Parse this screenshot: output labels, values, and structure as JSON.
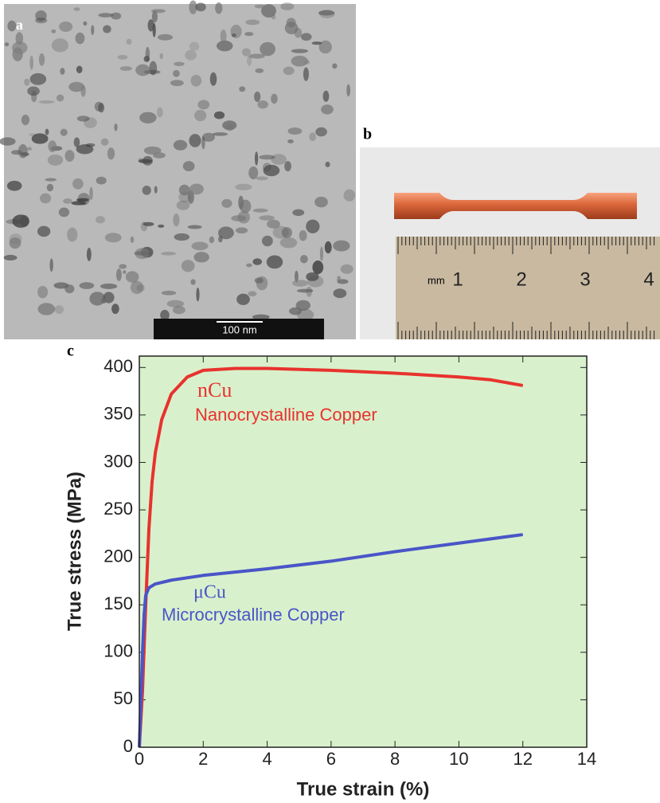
{
  "panels": {
    "a": {
      "label": "a",
      "scale_bar": "100 nm"
    },
    "b": {
      "label": "b",
      "ruler_unit": "mm",
      "ruler_numbers": [
        "1",
        "2",
        "3",
        "4"
      ]
    }
  },
  "chart_data": {
    "type": "line",
    "panel_label": "c",
    "x_label": "True strain (%)",
    "y_label": "True stress (MPa)",
    "xlim": [
      0,
      14
    ],
    "xticks": [
      0,
      2,
      4,
      6,
      8,
      10,
      12,
      14
    ],
    "ylim": [
      0,
      412
    ],
    "yticks": [
      0,
      50,
      100,
      150,
      200,
      250,
      300,
      350,
      400
    ],
    "plot_background": "#d8f1cc",
    "series": [
      {
        "name": "nCu",
        "description": "Nanocrystalline Copper",
        "color": "#e8322e",
        "x": [
          0,
          0.1,
          0.2,
          0.3,
          0.4,
          0.5,
          0.7,
          1,
          1.5,
          2,
          3,
          4,
          6,
          8,
          10,
          11,
          12
        ],
        "values": [
          0,
          60,
          150,
          230,
          280,
          310,
          345,
          372,
          390,
          397,
          399,
          399,
          397,
          394,
          390,
          387,
          381
        ]
      },
      {
        "name": "μCu",
        "description": "Microcrystalline Copper",
        "color": "#4a55c8",
        "x": [
          0,
          0.05,
          0.1,
          0.15,
          0.2,
          0.3,
          0.5,
          1,
          2,
          4,
          6,
          8,
          10,
          12
        ],
        "values": [
          0,
          50,
          100,
          140,
          160,
          168,
          172,
          176,
          181,
          188,
          196,
          206,
          215,
          224
        ]
      }
    ]
  }
}
